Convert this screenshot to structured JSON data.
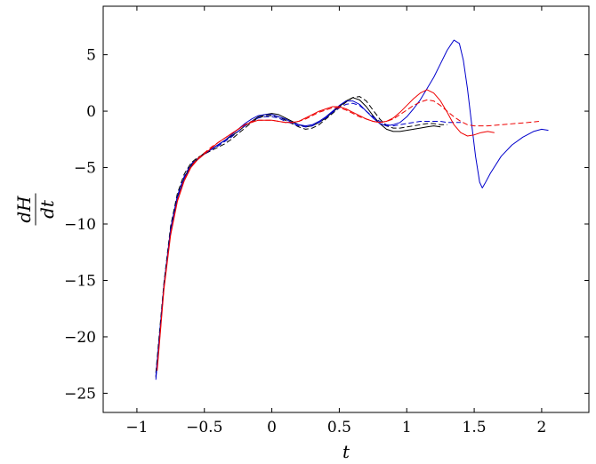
{
  "chart_data": {
    "type": "line",
    "title": "",
    "xlabel": "t",
    "ylabel": {
      "numerator": "dH",
      "denominator": "dt"
    },
    "xlim": [
      -1.25,
      2.35
    ],
    "ylim": [
      -26.7,
      9.3
    ],
    "xticks": [
      -1,
      -0.5,
      0,
      0.5,
      1,
      1.5,
      2
    ],
    "xtick_labels": [
      "−1",
      "−0.5",
      "0",
      "0.5",
      "1",
      "1.5",
      "2"
    ],
    "yticks": [
      -25,
      -20,
      -15,
      -10,
      -5,
      0,
      5
    ],
    "ytick_labels": [
      "−25",
      "−20",
      "−15",
      "−10",
      "−5",
      "0",
      "5"
    ],
    "grid": false,
    "legend": "none",
    "series": [
      {
        "color": "#000000",
        "dash": "solid",
        "points": [
          [
            -0.86,
            -23.6
          ],
          [
            -0.8,
            -15.5
          ],
          [
            -0.75,
            -10.5
          ],
          [
            -0.7,
            -7.6
          ],
          [
            -0.65,
            -5.9
          ],
          [
            -0.6,
            -4.8
          ],
          [
            -0.55,
            -4.2
          ],
          [
            -0.5,
            -3.7
          ],
          [
            -0.45,
            -3.4
          ],
          [
            -0.4,
            -3.0
          ],
          [
            -0.35,
            -2.6
          ],
          [
            -0.3,
            -2.2
          ],
          [
            -0.25,
            -1.8
          ],
          [
            -0.2,
            -1.3
          ],
          [
            -0.15,
            -0.9
          ],
          [
            -0.1,
            -0.5
          ],
          [
            -0.05,
            -0.3
          ],
          [
            0,
            -0.2
          ],
          [
            0.05,
            -0.3
          ],
          [
            0.1,
            -0.6
          ],
          [
            0.15,
            -0.9
          ],
          [
            0.2,
            -1.2
          ],
          [
            0.25,
            -1.4
          ],
          [
            0.3,
            -1.3
          ],
          [
            0.35,
            -1.0
          ],
          [
            0.4,
            -0.6
          ],
          [
            0.45,
            -0.1
          ],
          [
            0.5,
            0.4
          ],
          [
            0.55,
            0.9
          ],
          [
            0.6,
            1.2
          ],
          [
            0.65,
            1.0
          ],
          [
            0.7,
            0.4
          ],
          [
            0.75,
            -0.4
          ],
          [
            0.8,
            -1.1
          ],
          [
            0.85,
            -1.6
          ],
          [
            0.9,
            -1.8
          ],
          [
            0.95,
            -1.8
          ],
          [
            1.0,
            -1.7
          ],
          [
            1.05,
            -1.6
          ],
          [
            1.1,
            -1.5
          ],
          [
            1.15,
            -1.4
          ],
          [
            1.2,
            -1.3
          ],
          [
            1.25,
            -1.4
          ]
        ]
      },
      {
        "color": "#000000",
        "dash": "dashed",
        "points": [
          [
            -0.86,
            -23.2
          ],
          [
            -0.8,
            -15.2
          ],
          [
            -0.75,
            -10.2
          ],
          [
            -0.7,
            -7.3
          ],
          [
            -0.65,
            -5.6
          ],
          [
            -0.6,
            -4.6
          ],
          [
            -0.55,
            -4.1
          ],
          [
            -0.5,
            -3.8
          ],
          [
            -0.45,
            -3.5
          ],
          [
            -0.4,
            -3.2
          ],
          [
            -0.35,
            -2.9
          ],
          [
            -0.3,
            -2.5
          ],
          [
            -0.25,
            -2.0
          ],
          [
            -0.2,
            -1.5
          ],
          [
            -0.15,
            -1.0
          ],
          [
            -0.1,
            -0.6
          ],
          [
            -0.05,
            -0.4
          ],
          [
            0,
            -0.4
          ],
          [
            0.05,
            -0.5
          ],
          [
            0.1,
            -0.8
          ],
          [
            0.15,
            -1.1
          ],
          [
            0.2,
            -1.4
          ],
          [
            0.25,
            -1.6
          ],
          [
            0.3,
            -1.5
          ],
          [
            0.35,
            -1.2
          ],
          [
            0.4,
            -0.7
          ],
          [
            0.45,
            -0.2
          ],
          [
            0.5,
            0.3
          ],
          [
            0.55,
            0.8
          ],
          [
            0.6,
            1.2
          ],
          [
            0.65,
            1.3
          ],
          [
            0.7,
            0.9
          ],
          [
            0.75,
            0.1
          ],
          [
            0.8,
            -0.7
          ],
          [
            0.85,
            -1.3
          ],
          [
            0.9,
            -1.5
          ],
          [
            0.95,
            -1.5
          ],
          [
            1.0,
            -1.4
          ],
          [
            1.05,
            -1.3
          ],
          [
            1.1,
            -1.2
          ],
          [
            1.15,
            -1.1
          ],
          [
            1.2,
            -1.1
          ],
          [
            1.25,
            -1.2
          ],
          [
            1.3,
            -1.2
          ]
        ]
      },
      {
        "color": "#0000cc",
        "dash": "solid",
        "points": [
          [
            -0.86,
            -23.8
          ],
          [
            -0.8,
            -15.6
          ],
          [
            -0.75,
            -10.6
          ],
          [
            -0.7,
            -7.7
          ],
          [
            -0.65,
            -6.0
          ],
          [
            -0.6,
            -4.9
          ],
          [
            -0.55,
            -4.3
          ],
          [
            -0.5,
            -3.8
          ],
          [
            -0.45,
            -3.4
          ],
          [
            -0.4,
            -3.0
          ],
          [
            -0.35,
            -2.6
          ],
          [
            -0.3,
            -2.1
          ],
          [
            -0.25,
            -1.6
          ],
          [
            -0.2,
            -1.1
          ],
          [
            -0.15,
            -0.7
          ],
          [
            -0.1,
            -0.4
          ],
          [
            -0.05,
            -0.3
          ],
          [
            0,
            -0.3
          ],
          [
            0.05,
            -0.5
          ],
          [
            0.1,
            -0.7
          ],
          [
            0.15,
            -1.0
          ],
          [
            0.2,
            -1.2
          ],
          [
            0.25,
            -1.3
          ],
          [
            0.3,
            -1.2
          ],
          [
            0.35,
            -0.9
          ],
          [
            0.4,
            -0.5
          ],
          [
            0.45,
            0.0
          ],
          [
            0.5,
            0.5
          ],
          [
            0.55,
            0.9
          ],
          [
            0.6,
            0.9
          ],
          [
            0.65,
            0.6
          ],
          [
            0.7,
            0.0
          ],
          [
            0.75,
            -0.6
          ],
          [
            0.8,
            -1.1
          ],
          [
            0.85,
            -1.3
          ],
          [
            0.9,
            -1.2
          ],
          [
            0.95,
            -1.0
          ],
          [
            1.0,
            -0.5
          ],
          [
            1.05,
            0.2
          ],
          [
            1.1,
            1.0
          ],
          [
            1.15,
            2.0
          ],
          [
            1.2,
            3.0
          ],
          [
            1.25,
            4.2
          ],
          [
            1.3,
            5.4
          ],
          [
            1.35,
            6.3
          ],
          [
            1.39,
            6.0
          ],
          [
            1.42,
            4.5
          ],
          [
            1.45,
            2.0
          ],
          [
            1.48,
            -1.0
          ],
          [
            1.51,
            -4.0
          ],
          [
            1.54,
            -6.3
          ],
          [
            1.56,
            -6.8
          ],
          [
            1.58,
            -6.4
          ],
          [
            1.62,
            -5.5
          ],
          [
            1.7,
            -4.0
          ],
          [
            1.78,
            -3.0
          ],
          [
            1.86,
            -2.3
          ],
          [
            1.94,
            -1.8
          ],
          [
            2.0,
            -1.6
          ],
          [
            2.05,
            -1.7
          ]
        ]
      },
      {
        "color": "#0000cc",
        "dash": "dashed",
        "points": [
          [
            -0.86,
            -23.5
          ],
          [
            -0.8,
            -15.4
          ],
          [
            -0.75,
            -10.4
          ],
          [
            -0.7,
            -7.5
          ],
          [
            -0.65,
            -5.8
          ],
          [
            -0.6,
            -4.7
          ],
          [
            -0.55,
            -4.2
          ],
          [
            -0.5,
            -3.8
          ],
          [
            -0.45,
            -3.4
          ],
          [
            -0.4,
            -3.1
          ],
          [
            -0.35,
            -2.7
          ],
          [
            -0.3,
            -2.3
          ],
          [
            -0.25,
            -1.8
          ],
          [
            -0.2,
            -1.3
          ],
          [
            -0.15,
            -0.9
          ],
          [
            -0.1,
            -0.6
          ],
          [
            -0.05,
            -0.5
          ],
          [
            0,
            -0.5
          ],
          [
            0.05,
            -0.6
          ],
          [
            0.1,
            -0.9
          ],
          [
            0.15,
            -1.1
          ],
          [
            0.2,
            -1.3
          ],
          [
            0.25,
            -1.4
          ],
          [
            0.3,
            -1.3
          ],
          [
            0.35,
            -1.0
          ],
          [
            0.4,
            -0.6
          ],
          [
            0.45,
            -0.1
          ],
          [
            0.5,
            0.3
          ],
          [
            0.55,
            0.6
          ],
          [
            0.6,
            0.7
          ],
          [
            0.65,
            0.5
          ],
          [
            0.7,
            0.0
          ],
          [
            0.75,
            -0.5
          ],
          [
            0.8,
            -0.9
          ],
          [
            0.85,
            -1.2
          ],
          [
            0.9,
            -1.3
          ],
          [
            0.95,
            -1.2
          ],
          [
            1.0,
            -1.1
          ],
          [
            1.05,
            -1.0
          ],
          [
            1.1,
            -0.9
          ],
          [
            1.15,
            -0.9
          ],
          [
            1.2,
            -0.9
          ],
          [
            1.25,
            -0.9
          ],
          [
            1.3,
            -1.0
          ],
          [
            1.35,
            -1.0
          ],
          [
            1.4,
            -1.0
          ]
        ]
      },
      {
        "color": "#ee0000",
        "dash": "solid",
        "points": [
          [
            -0.85,
            -23.0
          ],
          [
            -0.8,
            -15.8
          ],
          [
            -0.75,
            -11.0
          ],
          [
            -0.7,
            -8.0
          ],
          [
            -0.65,
            -6.2
          ],
          [
            -0.6,
            -5.0
          ],
          [
            -0.55,
            -4.3
          ],
          [
            -0.5,
            -3.8
          ],
          [
            -0.45,
            -3.3
          ],
          [
            -0.4,
            -2.8
          ],
          [
            -0.35,
            -2.4
          ],
          [
            -0.3,
            -2.0
          ],
          [
            -0.25,
            -1.6
          ],
          [
            -0.2,
            -1.2
          ],
          [
            -0.15,
            -1.0
          ],
          [
            -0.1,
            -0.8
          ],
          [
            -0.05,
            -0.8
          ],
          [
            0,
            -0.8
          ],
          [
            0.05,
            -0.9
          ],
          [
            0.1,
            -1.0
          ],
          [
            0.15,
            -1.0
          ],
          [
            0.2,
            -0.9
          ],
          [
            0.25,
            -0.6
          ],
          [
            0.3,
            -0.3
          ],
          [
            0.35,
            0.0
          ],
          [
            0.4,
            0.2
          ],
          [
            0.45,
            0.4
          ],
          [
            0.5,
            0.4
          ],
          [
            0.55,
            0.2
          ],
          [
            0.6,
            -0.1
          ],
          [
            0.65,
            -0.4
          ],
          [
            0.7,
            -0.7
          ],
          [
            0.75,
            -0.9
          ],
          [
            0.8,
            -1.0
          ],
          [
            0.85,
            -0.9
          ],
          [
            0.9,
            -0.6
          ],
          [
            0.95,
            -0.1
          ],
          [
            1.0,
            0.5
          ],
          [
            1.05,
            1.1
          ],
          [
            1.1,
            1.6
          ],
          [
            1.15,
            1.9
          ],
          [
            1.2,
            1.6
          ],
          [
            1.25,
            0.9
          ],
          [
            1.3,
            -0.1
          ],
          [
            1.35,
            -1.2
          ],
          [
            1.4,
            -1.9
          ],
          [
            1.45,
            -2.2
          ],
          [
            1.5,
            -2.1
          ],
          [
            1.55,
            -1.9
          ],
          [
            1.6,
            -1.8
          ],
          [
            1.65,
            -1.9
          ]
        ]
      },
      {
        "color": "#ee0000",
        "dash": "dashed",
        "points": [
          [
            -0.85,
            -22.8
          ],
          [
            -0.8,
            -15.6
          ],
          [
            -0.75,
            -10.8
          ],
          [
            -0.7,
            -7.9
          ],
          [
            -0.65,
            -6.1
          ],
          [
            -0.6,
            -4.9
          ],
          [
            -0.55,
            -4.2
          ],
          [
            -0.5,
            -3.7
          ],
          [
            -0.45,
            -3.2
          ],
          [
            -0.4,
            -2.8
          ],
          [
            -0.35,
            -2.4
          ],
          [
            -0.3,
            -2.0
          ],
          [
            -0.25,
            -1.6
          ],
          [
            -0.2,
            -1.2
          ],
          [
            -0.15,
            -0.9
          ],
          [
            -0.1,
            -0.8
          ],
          [
            -0.05,
            -0.8
          ],
          [
            0,
            -0.8
          ],
          [
            0.05,
            -0.9
          ],
          [
            0.1,
            -1.0
          ],
          [
            0.15,
            -1.0
          ],
          [
            0.2,
            -0.9
          ],
          [
            0.25,
            -0.7
          ],
          [
            0.3,
            -0.4
          ],
          [
            0.35,
            -0.1
          ],
          [
            0.4,
            0.1
          ],
          [
            0.45,
            0.3
          ],
          [
            0.5,
            0.3
          ],
          [
            0.55,
            0.1
          ],
          [
            0.6,
            -0.2
          ],
          [
            0.65,
            -0.5
          ],
          [
            0.7,
            -0.7
          ],
          [
            0.75,
            -0.9
          ],
          [
            0.8,
            -1.0
          ],
          [
            0.85,
            -0.9
          ],
          [
            0.9,
            -0.7
          ],
          [
            0.95,
            -0.3
          ],
          [
            1.0,
            0.1
          ],
          [
            1.05,
            0.5
          ],
          [
            1.1,
            0.8
          ],
          [
            1.15,
            1.0
          ],
          [
            1.2,
            0.9
          ],
          [
            1.25,
            0.5
          ],
          [
            1.3,
            0.0
          ],
          [
            1.35,
            -0.5
          ],
          [
            1.4,
            -0.9
          ],
          [
            1.45,
            -1.2
          ],
          [
            1.5,
            -1.3
          ],
          [
            1.6,
            -1.3
          ],
          [
            1.7,
            -1.2
          ],
          [
            1.8,
            -1.1
          ],
          [
            1.9,
            -1.0
          ],
          [
            1.98,
            -0.9
          ]
        ]
      }
    ]
  }
}
